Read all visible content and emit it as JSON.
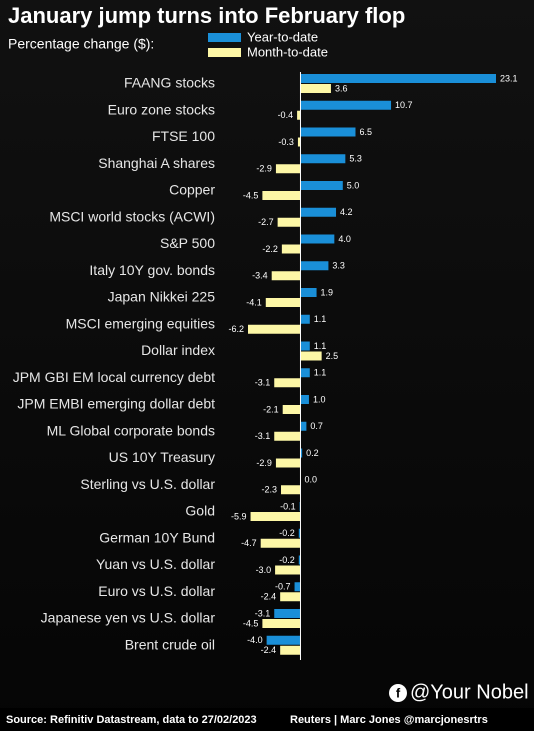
{
  "chart_data": {
    "type": "barh",
    "title": "January jump turns into February flop",
    "subtitle": "Percentage change ($):",
    "categories": [
      "FAANG stocks",
      "Euro zone stocks",
      "FTSE 100",
      "Shanghai A shares",
      "Copper",
      "MSCI world stocks (ACWI)",
      "S&P 500",
      "Italy 10Y gov. bonds",
      "Japan Nikkei 225",
      "MSCI emerging equities",
      "Dollar index",
      "JPM GBI EM local currency debt",
      "JPM EMBI emerging dollar debt",
      "ML Global corporate bonds",
      "US 10Y Treasury",
      "Sterling vs U.S. dollar",
      "Gold",
      "German 10Y Bund",
      "Yuan vs U.S. dollar",
      "Euro vs U.S. dollar",
      "Japanese yen vs U.S. dollar",
      "Brent crude oil"
    ],
    "series": [
      {
        "name": "Year-to-date",
        "color": "#1a8fd8",
        "values": [
          23.1,
          10.7,
          6.5,
          5.3,
          5,
          4.2,
          4,
          3.3,
          1.9,
          1.1,
          1.1,
          1.1,
          1,
          0.7,
          0.2,
          0,
          -0.1,
          -0.2,
          -0.2,
          -0.7,
          -3.1,
          -4
        ],
        "value_labels": [
          "23.1",
          "10.7",
          "6.5",
          "5.3",
          "5.0",
          "4.2",
          "4.0",
          "3.3",
          "1.9",
          "1.1",
          "1.1",
          "1.1",
          "1.0",
          "0.7",
          "0.2",
          "0.0",
          "-0.1",
          "-0.2",
          "-0.2",
          "-0.7",
          "-3.1",
          "-4.0"
        ]
      },
      {
        "name": "Month-to-date",
        "color": "#fdf7a6",
        "values": [
          3.6,
          -0.4,
          -0.3,
          -2.9,
          -4.5,
          -2.7,
          -2.2,
          -3.4,
          -4.1,
          -6.2,
          2.5,
          -3.1,
          -2.1,
          -3.1,
          -2.9,
          -2.3,
          -5.9,
          -4.7,
          -3,
          -2.4,
          -4.5,
          -2.4
        ],
        "value_labels": [
          "3.6",
          "-0.4",
          "-0.3",
          "-2.9",
          "-4.5",
          "-2.7",
          "-2.2",
          "-3.4",
          "-4.1",
          "-6.2",
          "2.5",
          "-3.1",
          "-2.1",
          "-3.1",
          "-2.9",
          "-2.3",
          "-5.9",
          "-4.7",
          "-3.0",
          "-2.4",
          "-4.5",
          "-2.4"
        ]
      }
    ],
    "xlim": [
      -6.2,
      23.1
    ],
    "source": "Source: Refinitiv Datastream, data to 27/02/2023",
    "credit": "Reuters | Marc Jones @marcjonesrtrs",
    "watermark": "@Your Nobel"
  }
}
